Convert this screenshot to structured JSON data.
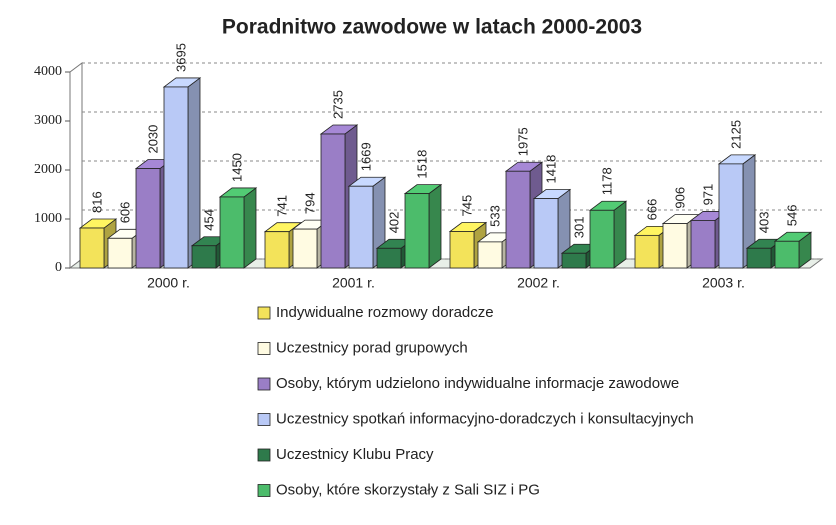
{
  "chart_data": {
    "type": "bar3d",
    "title": "Poradnitwo zawodowe w latach 2000-2003",
    "categories": [
      "2000 r.",
      "2001 r.",
      "2002 r.",
      "2003 r."
    ],
    "series": [
      {
        "name": "Indywidualne rozmowy doradcze",
        "color": "#f3e35a",
        "values": [
          816,
          741,
          745,
          666
        ]
      },
      {
        "name": "Uczestnicy porad grupowych",
        "color": "#fffbe2",
        "values": [
          606,
          794,
          533,
          906
        ]
      },
      {
        "name": "Osoby, którym  udzielono indywidualne informacje zawodowe",
        "color": "#9a7ec6",
        "values": [
          2030,
          2735,
          1975,
          971
        ]
      },
      {
        "name": "Uczestnicy spotkań informacyjno-doradczych i konsultacyjnych",
        "color": "#b9c9f6",
        "values": [
          3695,
          1669,
          1418,
          2125
        ]
      },
      {
        "name": "Uczestnicy Klubu Pracy",
        "color": "#2e7a4b",
        "values": [
          454,
          402,
          301,
          403
        ]
      },
      {
        "name": "Osoby, które skorzystały z Sali SIZ i PG",
        "color": "#4cbc6b",
        "values": [
          1450,
          1518,
          1178,
          546
        ]
      }
    ],
    "ylim": [
      0,
      4000
    ],
    "yticks": [
      0,
      1000,
      2000,
      3000,
      4000
    ],
    "grid": true
  }
}
